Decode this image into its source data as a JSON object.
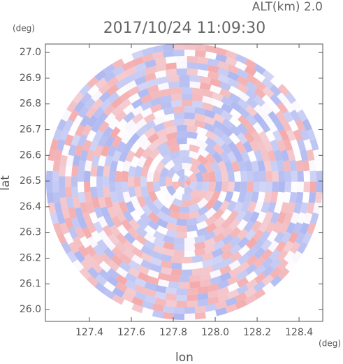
{
  "chart_data": {
    "type": "radar",
    "title": "2017/10/24 11:09:30",
    "subtitle": "ALT(km) 2.0",
    "x_label": "lon",
    "y_label": "lat",
    "x_unit": "(deg)",
    "y_unit": "(deg)",
    "xlim": [
      127.19,
      128.513
    ],
    "ylim": [
      25.954,
      27.033
    ],
    "xticks": [
      {
        "value": 127.4,
        "label": "127.4"
      },
      {
        "value": 127.6,
        "label": "127.6"
      },
      {
        "value": 127.8,
        "label": "127.8"
      },
      {
        "value": 128.0,
        "label": "128.0"
      },
      {
        "value": 128.2,
        "label": "128.2"
      },
      {
        "value": 128.4,
        "label": "128.4"
      }
    ],
    "yticks": [
      {
        "value": 26.0,
        "label": "26.0"
      },
      {
        "value": 26.1,
        "label": "26.1"
      },
      {
        "value": 26.2,
        "label": "26.2"
      },
      {
        "value": 26.3,
        "label": "26.3"
      },
      {
        "value": 26.4,
        "label": "26.4"
      },
      {
        "value": 26.5,
        "label": "26.5"
      },
      {
        "value": 26.6,
        "label": "26.6"
      },
      {
        "value": 26.7,
        "label": "26.7"
      },
      {
        "value": 26.8,
        "label": "26.8"
      },
      {
        "value": 26.9,
        "label": "26.9"
      },
      {
        "value": 27.0,
        "label": "27.0"
      }
    ],
    "colors": [
      "#f4a6a6",
      "#a9b4f0"
    ]
  }
}
